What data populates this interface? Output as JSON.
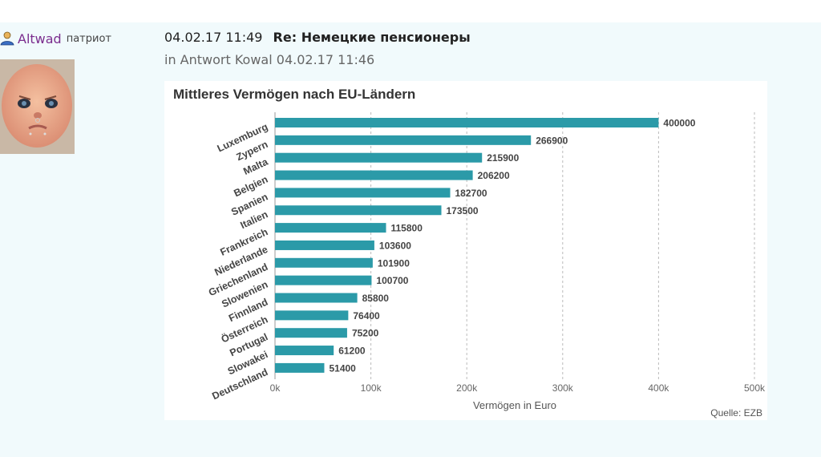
{
  "post": {
    "author": "Altwad",
    "rank": "патриот",
    "icons": {
      "user": "user-icon"
    },
    "datetime": "04.02.17 11:49",
    "title": "Re: Немецкие пенсионеры",
    "reply_prefix": "in Antwort",
    "reply_author": "Kowal",
    "reply_datetime": "04.02.17 11:46"
  },
  "chart_data": {
    "type": "bar",
    "orientation": "horizontal",
    "title": "Mittleres Vermögen nach EU-Ländern",
    "xlabel": "Vermögen in Euro",
    "source": "Quelle: EZB",
    "categories": [
      "Luxemburg",
      "Zypern",
      "Malta",
      "Belgien",
      "Spanien",
      "Italien",
      "Frankreich",
      "Niederlande",
      "Griechenland",
      "Slowenien",
      "Finnland",
      "Österreich",
      "Portugal",
      "Slowakei",
      "Deutschland"
    ],
    "values": [
      400000,
      266900,
      215900,
      206200,
      182700,
      173500,
      115800,
      103600,
      101900,
      100700,
      85800,
      76400,
      75200,
      61200,
      51400
    ],
    "xlim": [
      0,
      500000
    ],
    "ticks": [
      0,
      100000,
      200000,
      300000,
      400000,
      500000
    ],
    "tick_labels": [
      "0k",
      "100k",
      "200k",
      "300k",
      "400k",
      "500k"
    ],
    "grid": true,
    "bar_color": "#2b9aa8"
  }
}
